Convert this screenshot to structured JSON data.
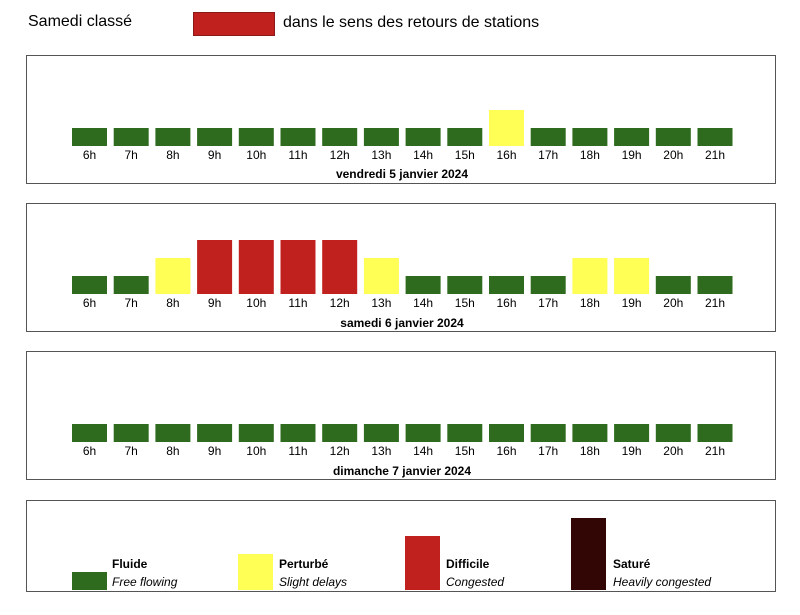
{
  "header": {
    "title": "Samedi classé",
    "caption": "dans le sens des retours de stations",
    "swatch_color": "#c0201e"
  },
  "status_colors": {
    "fluide": "#2e6b1e",
    "perturbe": "#ffff55",
    "difficile": "#c0201e",
    "sature": "#330606"
  },
  "chart_data": [
    {
      "type": "bar",
      "title": "vendredi 5 janvier 2024",
      "categories": [
        "6h",
        "7h",
        "8h",
        "9h",
        "10h",
        "11h",
        "12h",
        "13h",
        "14h",
        "15h",
        "16h",
        "17h",
        "18h",
        "19h",
        "20h",
        "21h"
      ],
      "values": [
        "fluide",
        "fluide",
        "fluide",
        "fluide",
        "fluide",
        "fluide",
        "fluide",
        "fluide",
        "fluide",
        "fluide",
        "perturbe",
        "fluide",
        "fluide",
        "fluide",
        "fluide",
        "fluide"
      ]
    },
    {
      "type": "bar",
      "title": "samedi 6 janvier 2024",
      "categories": [
        "6h",
        "7h",
        "8h",
        "9h",
        "10h",
        "11h",
        "12h",
        "13h",
        "14h",
        "15h",
        "16h",
        "17h",
        "18h",
        "19h",
        "20h",
        "21h"
      ],
      "values": [
        "fluide",
        "fluide",
        "perturbe",
        "difficile",
        "difficile",
        "difficile",
        "difficile",
        "perturbe",
        "fluide",
        "fluide",
        "fluide",
        "fluide",
        "perturbe",
        "perturbe",
        "fluide",
        "fluide"
      ]
    },
    {
      "type": "bar",
      "title": "dimanche 7 janvier 2024",
      "categories": [
        "6h",
        "7h",
        "8h",
        "9h",
        "10h",
        "11h",
        "12h",
        "13h",
        "14h",
        "15h",
        "16h",
        "17h",
        "18h",
        "19h",
        "20h",
        "21h"
      ],
      "values": [
        "fluide",
        "fluide",
        "fluide",
        "fluide",
        "fluide",
        "fluide",
        "fluide",
        "fluide",
        "fluide",
        "fluide",
        "fluide",
        "fluide",
        "fluide",
        "fluide",
        "fluide",
        "fluide"
      ]
    }
  ],
  "legend": [
    {
      "key": "fluide",
      "name": "Fluide",
      "desc": "Free flowing"
    },
    {
      "key": "perturbe",
      "name": "Perturbé",
      "desc": "Slight delays"
    },
    {
      "key": "difficile",
      "name": "Difficile",
      "desc": "Congested"
    },
    {
      "key": "sature",
      "name": "Saturé",
      "desc": "Heavily congested"
    }
  ]
}
